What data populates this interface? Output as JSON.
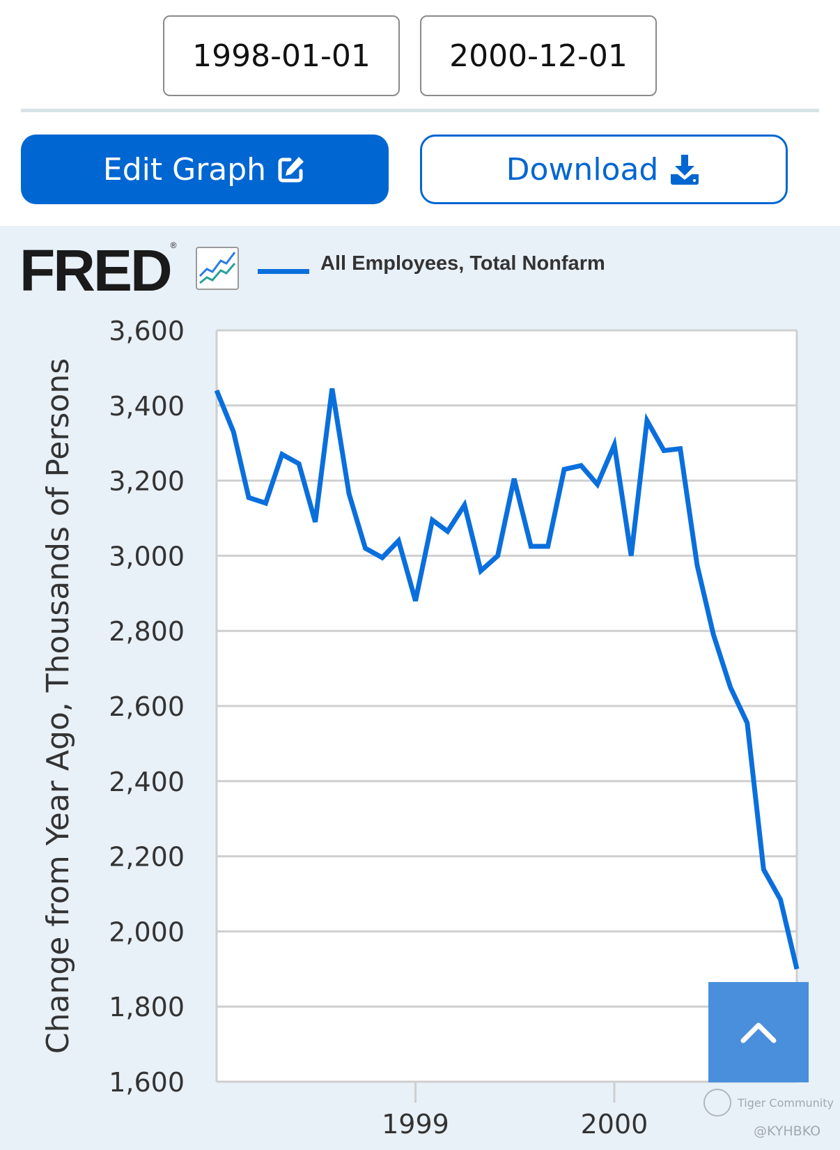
{
  "date_range": {
    "start": "1998-01-01",
    "end": "2000-12-01"
  },
  "buttons": {
    "edit_label": "Edit Graph",
    "download_label": "Download"
  },
  "icons": {
    "edit": "edit-square-icon",
    "download": "download-tray-icon",
    "scroll_top": "chevron-up-icon",
    "fred_graph": "line-graph-icon"
  },
  "brand": {
    "logo_text": "FRED",
    "accent": "#0066d1",
    "series_color": "#0a6fdc"
  },
  "watermark": {
    "text": "Tiger Community",
    "handle": "@KYHBKO"
  },
  "chart_data": {
    "type": "line",
    "title": "",
    "ylabel": "Change from Year Ago, Thousands of Persons",
    "xlabel": "",
    "ylim": [
      1600,
      3600
    ],
    "y_ticks": [
      1600,
      1800,
      2000,
      2200,
      2400,
      2600,
      2800,
      3000,
      3200,
      3400,
      3600
    ],
    "y_tick_labels": [
      "1,600",
      "1,800",
      "2,000",
      "2,200",
      "2,400",
      "2,600",
      "2,800",
      "3,000",
      "3,200",
      "3,400",
      "3,600"
    ],
    "x_range": [
      "1998-01-01",
      "2000-12-01"
    ],
    "x_ticks": [
      "1999-01-01",
      "2000-01-01"
    ],
    "x_tick_labels": [
      "1999",
      "2000"
    ],
    "grid": true,
    "legend": "top",
    "series": [
      {
        "name": "All Employees, Total Nonfarm",
        "x": [
          "1998-01-01",
          "1998-02-01",
          "1998-03-01",
          "1998-04-01",
          "1998-05-01",
          "1998-06-01",
          "1998-07-01",
          "1998-08-01",
          "1998-09-01",
          "1998-10-01",
          "1998-11-01",
          "1998-12-01",
          "1999-01-01",
          "1999-02-01",
          "1999-03-01",
          "1999-04-01",
          "1999-05-01",
          "1999-06-01",
          "1999-07-01",
          "1999-08-01",
          "1999-09-01",
          "1999-10-01",
          "1999-11-01",
          "1999-12-01",
          "2000-01-01",
          "2000-02-01",
          "2000-03-01",
          "2000-04-01",
          "2000-05-01",
          "2000-06-01",
          "2000-07-01",
          "2000-08-01",
          "2000-09-01",
          "2000-10-01",
          "2000-11-01",
          "2000-12-01"
        ],
        "values": [
          3440,
          3330,
          3155,
          3140,
          3270,
          3245,
          3090,
          3445,
          3165,
          3020,
          2995,
          3040,
          2880,
          3095,
          3065,
          3135,
          2960,
          3000,
          3205,
          3025,
          3025,
          3230,
          3240,
          3190,
          3295,
          3000,
          3360,
          3280,
          3285,
          2975,
          2790,
          2650,
          2555,
          2165,
          2085,
          1900
        ]
      }
    ]
  }
}
